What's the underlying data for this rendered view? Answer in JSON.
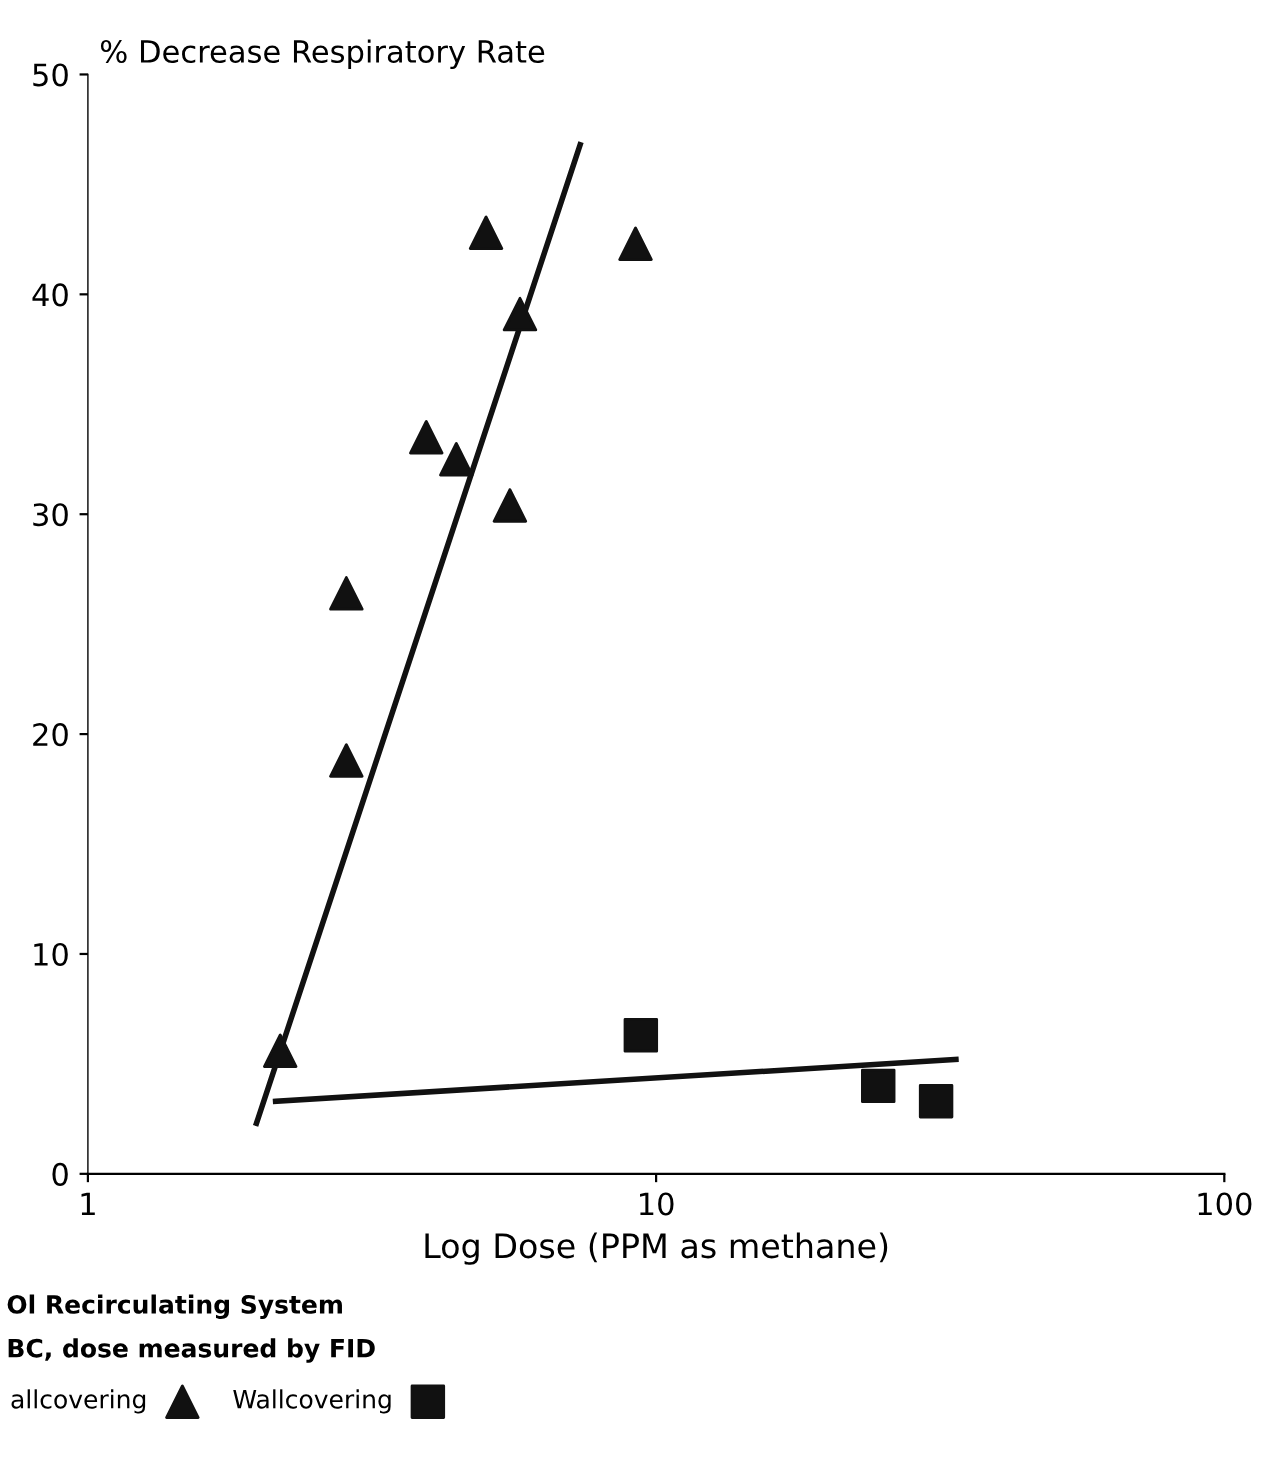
{
  "chart_data": {
    "type": "scatter",
    "ylabel": "% Decrease Respiratory Rate",
    "xlabel": "Log Dose (PPM as methane)",
    "log": "x",
    "xlim": [
      1,
      100
    ],
    "xticks": [
      1,
      10,
      100
    ],
    "ylim": [
      0,
      50
    ],
    "yticks": [
      0,
      10,
      20,
      30,
      40,
      50
    ],
    "grid": false,
    "legend": "bottom left",
    "annotations": [
      "Ol Recirculating System",
      "BC, dose measured by FID"
    ],
    "series": [
      {
        "name": "allcovering",
        "color": "#111111",
        "marker": "triangle",
        "x": [
          2.18,
          2.85,
          2.85,
          3.94,
          4.45,
          5.02,
          5.76,
          5.53,
          9.2
        ],
        "values": [
          5.6,
          18.8,
          26.4,
          33.5,
          32.5,
          42.8,
          39.1,
          30.4,
          42.3
        ]
      },
      {
        "name": "Wallcovering",
        "color": "#111111",
        "marker": "square",
        "x": [
          9.4,
          24.6,
          31.1
        ],
        "values": [
          6.3,
          4.0,
          3.3
        ]
      },
      {
        "type": "line",
        "color": "#111111",
        "x": [
          1.98,
          7.35
        ],
        "values": [
          2.3,
          46.8
        ]
      },
      {
        "type": "line",
        "color": "#111111",
        "x": [
          2.14,
          33.7
        ],
        "values": [
          3.3,
          5.2
        ]
      }
    ]
  }
}
